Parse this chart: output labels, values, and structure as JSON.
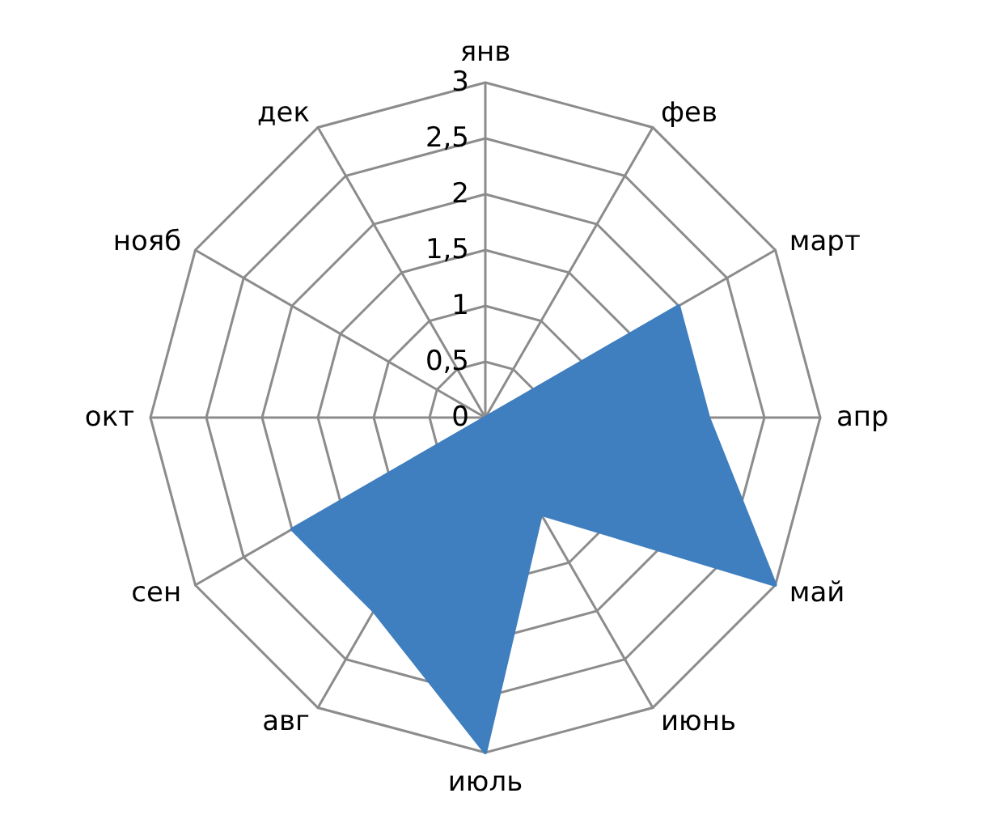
{
  "chart_data": {
    "type": "radar",
    "categories": [
      "янв",
      "фев",
      "март",
      "апр",
      "май",
      "июнь",
      "июль",
      "авг",
      "сен",
      "окт",
      "нояб",
      "дек"
    ],
    "series": [
      {
        "type": "area",
        "color": "#3f7fbf",
        "values": [
          0,
          0,
          2,
          2,
          3,
          1,
          3,
          2,
          2,
          0,
          0,
          0
        ]
      }
    ],
    "ylim": [
      0,
      3
    ],
    "yticks": [
      0,
      {
        "value": 0.5,
        "label": "0,5"
      },
      1,
      {
        "value": 1.5,
        "label": "1,5"
      },
      2,
      {
        "value": 2.5,
        "label": "2,5"
      },
      3
    ],
    "grid": true,
    "marker": "none"
  }
}
